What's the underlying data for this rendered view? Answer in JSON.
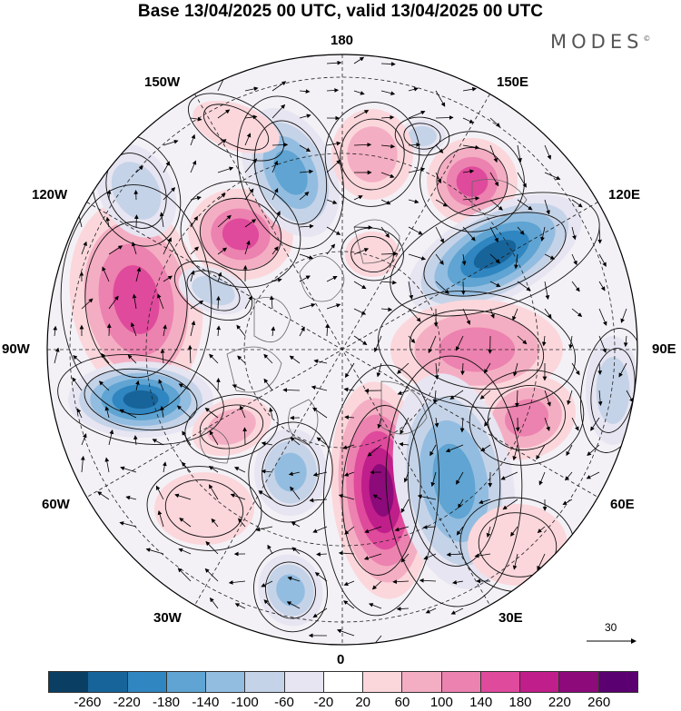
{
  "title": "Base 13/04/2025 00 UTC, valid 13/04/2025 00 UTC",
  "brand": {
    "name": "MODES",
    "mark": "©"
  },
  "longitude_labels": {
    "top": "180",
    "bottom": "0",
    "left": "90W",
    "right": "90E",
    "upper_left_1": "150W",
    "upper_left_2": "120W",
    "upper_right_1": "150E",
    "upper_right_2": "120E",
    "lower_left_1": "60W",
    "lower_left_2": "30W",
    "lower_right_1": "60E",
    "lower_right_2": "30E"
  },
  "wind_reference": {
    "value": "30"
  },
  "colorbar": {
    "colors": [
      "#0b3e63",
      "#17649a",
      "#2f86c1",
      "#5fa4d2",
      "#93bde0",
      "#c5d3e8",
      "#e6e5f1",
      "#ffffff",
      "#fbd7dc",
      "#f4aec3",
      "#ec82af",
      "#df4a9c",
      "#c01e8a",
      "#8c0a7a",
      "#5b0070"
    ],
    "ticks": [
      "-260",
      "-220",
      "-180",
      "-140",
      "-100",
      "-60",
      "-20",
      "20",
      "60",
      "100",
      "140",
      "180",
      "220",
      "260"
    ]
  }
}
